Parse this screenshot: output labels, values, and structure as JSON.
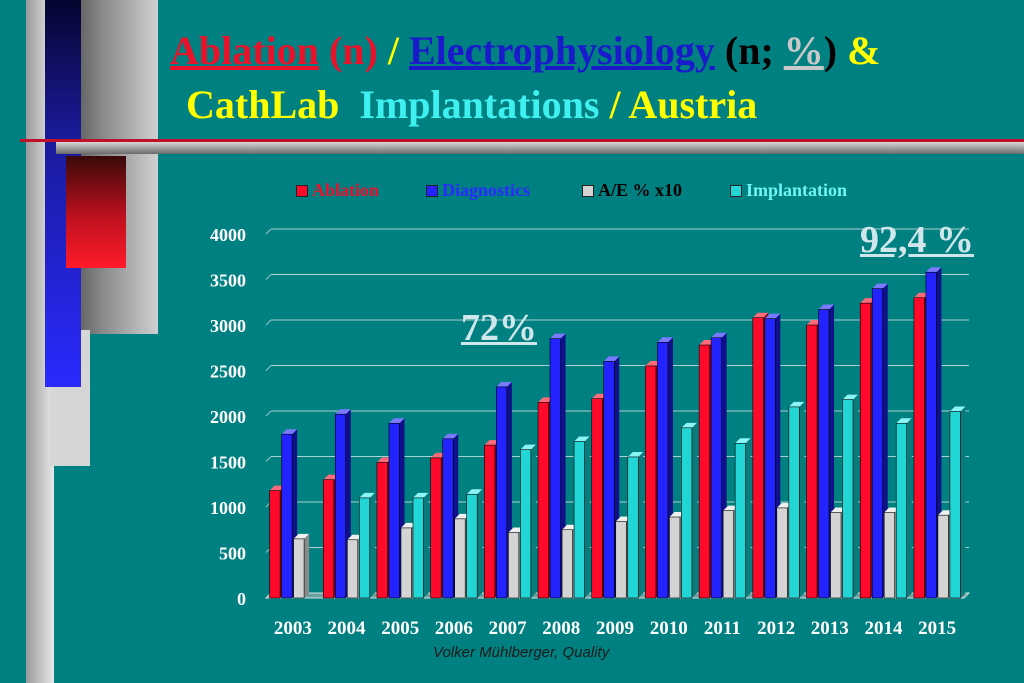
{
  "slide": {
    "title_line1": {
      "ablation": "Ablation",
      "ablation_n": "(n)",
      "slash": "/",
      "electrophysiology": "Electrophysiology",
      "ep_n": "(n;",
      "pct": "%",
      "close": ")",
      "amp": "&"
    },
    "title_line2": {
      "cathlab": "CathLab",
      "implantations": "Implantations",
      "austria": "/ Austria"
    },
    "footer": "Volker Mühlberger, Quality",
    "notes": [
      "72%",
      "92,4 %"
    ]
  },
  "colors": {
    "background": "#008080",
    "ablation": "#ff0a2a",
    "diagnostics": "#2323ff",
    "ae": "#d4d4d4",
    "implantation": "#22d6d6"
  },
  "chart_data": {
    "type": "bar",
    "categories": [
      "2003",
      "2004",
      "2005",
      "2006",
      "2007",
      "2008",
      "2009",
      "2010",
      "2011",
      "2012",
      "2013",
      "2014",
      "2015"
    ],
    "series": [
      {
        "name": "Ablation",
        "values": [
          1180,
          1300,
          1490,
          1540,
          1680,
          2150,
          2190,
          2550,
          2780,
          3080,
          3000,
          3240,
          3300
        ]
      },
      {
        "name": "Diagnostics",
        "values": [
          1800,
          2020,
          1920,
          1750,
          2320,
          2850,
          2600,
          2810,
          2860,
          3070,
          3170,
          3400,
          3580
        ]
      },
      {
        "name": "A/E % x10",
        "values": [
          650,
          640,
          770,
          870,
          720,
          750,
          840,
          890,
          960,
          990,
          940,
          940,
          910
        ]
      },
      {
        "name": "Implantation",
        "values": [
          0,
          1100,
          1100,
          1140,
          1630,
          1720,
          1550,
          1870,
          1700,
          2100,
          2180,
          1920,
          2050
        ]
      }
    ],
    "y_ticks": [
      "4000",
      "3500",
      "3000",
      "2500",
      "2000",
      "1500",
      "1000",
      "500",
      "0"
    ],
    "ylim": [
      0,
      4000
    ],
    "grid": true,
    "legend_position": "top"
  }
}
